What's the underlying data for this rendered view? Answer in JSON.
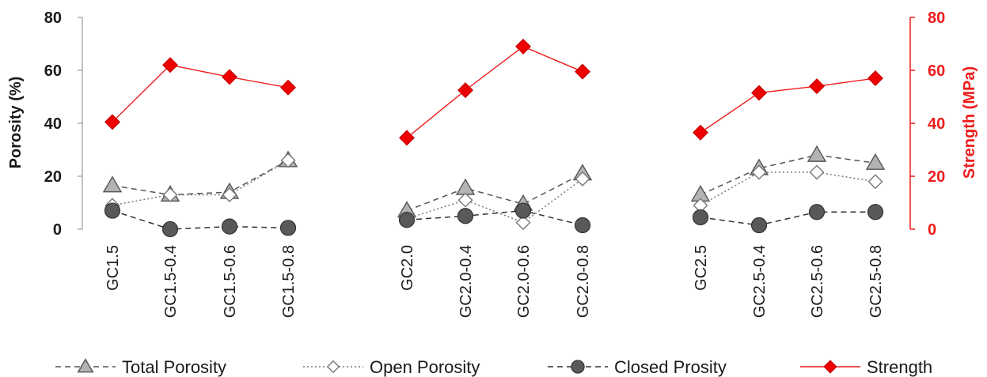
{
  "chart_data": {
    "type": "line",
    "categories": [
      "GC1.5",
      "GC1.5-0.4",
      "GC1.5-0.6",
      "GC1.5-0.8",
      "GC2.0",
      "GC2.0-0.4",
      "GC2.0-0.6",
      "GC2.0-0.8",
      "GC2.5",
      "GC2.5-0.4",
      "GC2.5-0.6",
      "GC2.5-0.8"
    ],
    "groups": [
      [
        0,
        1,
        2,
        3
      ],
      [
        4,
        5,
        6,
        7
      ],
      [
        8,
        9,
        10,
        11
      ]
    ],
    "ylabel": "Porosity (%)",
    "ylabel_right": "Strength (MPa)",
    "ylim": [
      0,
      80
    ],
    "ylim_right": [
      0,
      80
    ],
    "yticks": [
      "0",
      "20",
      "40",
      "60",
      "80"
    ],
    "yticks_right": [
      "0",
      "20",
      "40",
      "60",
      "80"
    ],
    "grid": false,
    "legend_position": "bottom",
    "series": [
      {
        "name": "Total Porosity",
        "axis": "left",
        "marker": "triangle",
        "line": "dashed",
        "color": "#555555",
        "fill": "#b3b3b3",
        "values": [
          16.5,
          13,
          14,
          26,
          7,
          15.5,
          9.5,
          21,
          13,
          23,
          28,
          25
        ]
      },
      {
        "name": "Open Porosity",
        "axis": "left",
        "marker": "diamond",
        "line": "dotted",
        "color": "#777777",
        "fill": "#ffffff",
        "values": [
          9,
          13,
          13,
          26,
          4,
          11,
          2.5,
          19,
          9,
          21.5,
          21.5,
          18
        ]
      },
      {
        "name": "Closed Prosity",
        "axis": "left",
        "marker": "circle",
        "line": "dashed",
        "color": "#333333",
        "fill": "#595959",
        "values": [
          7,
          0,
          1,
          0.5,
          3.5,
          5,
          7,
          1.5,
          4.5,
          1.5,
          6.5,
          6.5
        ]
      },
      {
        "name": "Strength",
        "axis": "right",
        "marker": "diamond",
        "line": "solid",
        "color": "#ee1c1c",
        "fill": "#ee0000",
        "values": [
          40.5,
          62,
          57.5,
          53.5,
          34.5,
          52.5,
          69,
          59.5,
          36.5,
          51.5,
          54,
          57
        ]
      }
    ]
  }
}
